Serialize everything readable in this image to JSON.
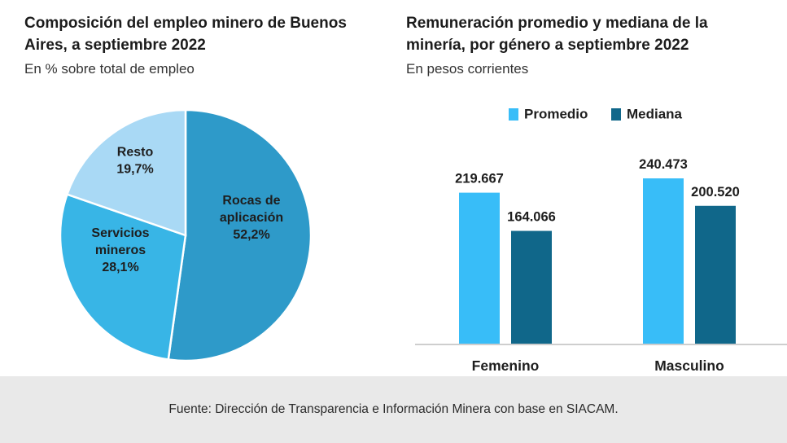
{
  "footer": {
    "source": "Fuente: Dirección de Transparencia e Información Minera con base en SIACAM."
  },
  "colors": {
    "rocas": "#2e9ac9",
    "servicios": "#38b5e6",
    "resto": "#a9d9f5",
    "promedio": "#38bdf8",
    "mediana": "#10678a",
    "axis": "#bdbdbd",
    "footer_bg": "#e9e9e9"
  },
  "chart_data": [
    {
      "type": "pie",
      "title": "Composición del empleo minero de Buenos Aires, a septiembre 2022",
      "subtitle": "En % sobre total de empleo",
      "slices": [
        {
          "label_lines": [
            "Rocas de",
            "aplicación"
          ],
          "label": "Rocas de aplicación",
          "value": 52.2,
          "value_text": "52,2%",
          "color": "#2e9ac9"
        },
        {
          "label_lines": [
            "Servicios",
            "mineros"
          ],
          "label": "Servicios mineros",
          "value": 28.1,
          "value_text": "28,1%",
          "color": "#38b5e6"
        },
        {
          "label_lines": [
            "Resto"
          ],
          "label": "Resto",
          "value": 19.7,
          "value_text": "19,7%",
          "color": "#a9d9f5"
        }
      ]
    },
    {
      "type": "bar",
      "title": "Remuneración promedio y mediana de la minería, por género a septiembre 2022",
      "subtitle": "En pesos corrientes",
      "categories": [
        "Femenino",
        "Masculino"
      ],
      "series": [
        {
          "name": "Promedio",
          "values": [
            219667,
            240473
          ],
          "labels": [
            "219.667",
            "240.473"
          ],
          "color": "#38bdf8"
        },
        {
          "name": "Mediana",
          "values": [
            164066,
            200520
          ],
          "labels": [
            "164.066",
            "200.520"
          ],
          "color": "#10678a"
        }
      ],
      "ylim": [
        0,
        282000
      ],
      "legend": "top"
    }
  ]
}
